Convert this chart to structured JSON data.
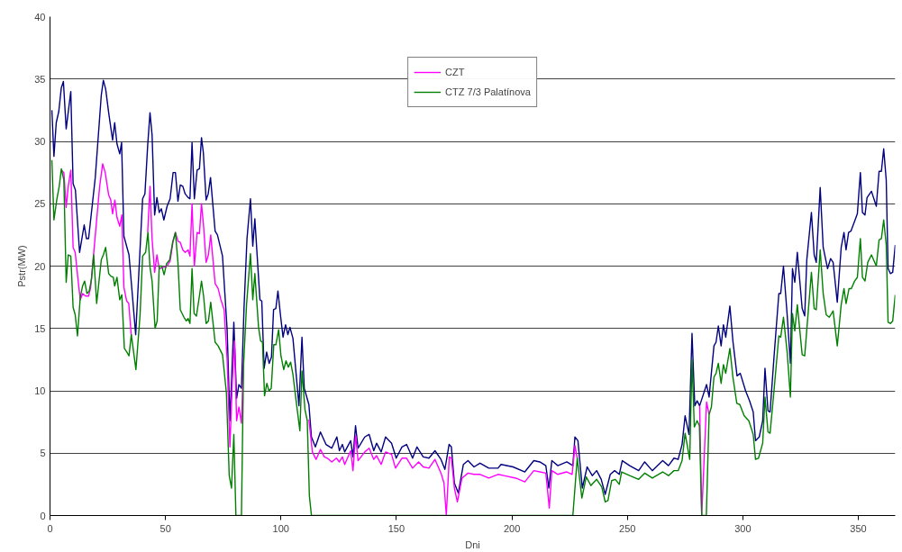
{
  "chart_data": {
    "type": "line",
    "xlabel": "Dni",
    "ylabel": "Pstr(MW)",
    "xlim": [
      0,
      366
    ],
    "ylim": [
      0,
      40
    ],
    "xticks": [
      0,
      50,
      100,
      150,
      200,
      250,
      300,
      350
    ],
    "yticks": [
      0,
      5,
      10,
      15,
      20,
      25,
      30,
      35,
      40
    ],
    "grid": "y",
    "legend": "top",
    "marker": "none",
    "line_style": "solid",
    "series": [
      {
        "color": "#000080",
        "x": [
          0.8,
          1.7,
          2.7,
          3.8,
          4.9,
          5.8,
          7,
          9,
          10,
          11,
          12.8,
          14.8,
          15.8,
          16.7,
          19.6,
          22.2,
          23.1,
          24.1,
          25.4,
          27.1,
          28,
          29,
          30.2,
          31,
          32,
          34.2,
          37.1,
          40.1,
          41.1,
          42.3,
          43.3,
          44.2,
          45.3,
          46.3,
          47.3,
          48.2,
          49.3,
          50.7,
          52,
          53.3,
          54.3,
          55.4,
          56.4,
          57.5,
          58.5,
          59.8,
          60.6,
          61.5,
          62.5,
          63.7,
          64.7,
          65.6,
          66.4,
          67.6,
          68.5,
          69.5,
          71.5,
          72.5,
          74.7,
          76.7,
          77.9,
          79.6,
          80.8,
          81.8,
          82.9,
          84,
          85.3,
          86.8,
          87.8,
          88.7,
          90.9,
          91.7,
          92.7,
          93.8,
          94.9,
          95.9,
          96.8,
          97.8,
          98.7,
          99.9,
          100.9,
          102,
          103,
          103.9,
          105.2,
          107.8,
          109.1,
          110.1,
          112.1,
          113.2,
          114.9,
          117.1,
          119.5,
          122,
          124.2,
          125.3,
          126.6,
          127.6,
          130.2,
          131.2,
          132.3,
          133.4,
          136.3,
          138.2,
          140.2,
          141.4,
          143.4,
          145.3,
          147.9,
          149.9,
          152.4,
          154.4,
          157,
          158.9,
          161.6,
          164.1,
          166.7,
          169.3,
          171,
          172.8,
          173.8,
          175.1,
          176.8,
          179,
          181,
          183.6,
          186.2,
          190,
          194,
          195.3,
          200.5,
          205.6,
          209.5,
          212.1,
          214.7,
          216,
          217.3,
          219.9,
          223.8,
          226.4,
          227.3,
          228.6,
          230.5,
          232.6,
          234.8,
          236.7,
          238.7,
          240.4,
          242.6,
          244.5,
          246.5,
          247.8,
          251,
          254.9,
          257.5,
          260.8,
          265.3,
          267.8,
          270.2,
          272,
          273.7,
          275,
          276.7,
          278,
          279.2,
          280.2,
          281.3,
          284.3,
          285.4,
          287.5,
          288.4,
          289.4,
          290.6,
          291.6,
          292.6,
          294.4,
          295.7,
          297.5,
          298.9,
          301.2,
          302.9,
          304.5,
          305.5,
          307.1,
          308.6,
          309.6,
          310.9,
          311.8,
          313.5,
          315.6,
          316.4,
          317.6,
          319.2,
          320.6,
          321.5,
          322.5,
          323.6,
          325.7,
          326.8,
          327.7,
          329.7,
          330.9,
          331.8,
          333.5,
          334.8,
          336.7,
          338,
          339.1,
          340.9,
          342.6,
          343.8,
          344.7,
          345.8,
          346.8,
          348.4,
          349.6,
          350.9,
          351.8,
          352.9,
          353.8,
          355.7,
          357.8,
          359,
          360,
          361,
          362.1,
          362.9,
          363.9,
          364.9,
          366
        ],
        "values": [
          32.5,
          28.8,
          31.5,
          32.4,
          34.3,
          34.8,
          31.0,
          34.0,
          26.6,
          26.1,
          21.1,
          23.3,
          22.2,
          22.2,
          27.1,
          33.7,
          34.9,
          34.2,
          32.3,
          30.1,
          31.5,
          29.8,
          29.0,
          29.9,
          22.4,
          20.9,
          14.5,
          25.4,
          25.8,
          29.7,
          32.3,
          30.5,
          24.1,
          25.5,
          24.3,
          24.6,
          23.7,
          24.8,
          25.4,
          27.5,
          27.5,
          25.2,
          26.5,
          26.4,
          25.8,
          25.5,
          25.4,
          29.9,
          25.4,
          27.7,
          27.8,
          30.3,
          29.1,
          25.3,
          25.8,
          27.1,
          22.8,
          22.5,
          20.8,
          14.9,
          7.6,
          15.5,
          9.4,
          10.5,
          10.2,
          16.6,
          22.2,
          25.4,
          21.6,
          23.8,
          17.3,
          17.2,
          11.8,
          13.1,
          12.2,
          12.7,
          16.5,
          16.6,
          18.0,
          15.9,
          14.3,
          15.3,
          14.5,
          15.1,
          14.2,
          8.8,
          14.3,
          10.2,
          8.9,
          6.3,
          5.5,
          6.7,
          5.7,
          5.4,
          6.3,
          5.2,
          5.7,
          5.1,
          6.0,
          4.7,
          7.2,
          5.4,
          6.3,
          6.5,
          5.2,
          5.8,
          5.1,
          6.3,
          5.8,
          4.6,
          5.5,
          5.7,
          4.6,
          5.5,
          4.7,
          4.6,
          5.2,
          4.5,
          3.7,
          5.7,
          5.5,
          2.6,
          1.8,
          4.1,
          4.4,
          3.9,
          4.2,
          3.8,
          3.8,
          4.1,
          3.9,
          3.5,
          4.4,
          4.3,
          4.0,
          2.2,
          4.4,
          4.0,
          4.3,
          4.0,
          6.3,
          6.0,
          2.2,
          3.9,
          3.2,
          3.6,
          2.9,
          1.7,
          3.3,
          3.6,
          3.3,
          4.4,
          4.0,
          3.6,
          4.3,
          3.6,
          4.4,
          4.0,
          4.6,
          4.5,
          5.7,
          8.0,
          6.5,
          14.6,
          8.8,
          9.2,
          8.8,
          10.5,
          9.5,
          13.6,
          13.9,
          15.2,
          13.6,
          15.3,
          14.3,
          16.8,
          14.0,
          11.2,
          11.4,
          10.0,
          9.2,
          8.3,
          6.0,
          6.3,
          7.6,
          11.8,
          8.4,
          8.3,
          12.7,
          17.8,
          17.8,
          20.0,
          16.1,
          12.2,
          19.8,
          18.7,
          21.1,
          16.6,
          16.0,
          20.5,
          24.3,
          20.9,
          20.3,
          26.3,
          21.5,
          19.8,
          20.6,
          20.3,
          17.1,
          21.5,
          22.7,
          21.3,
          22.7,
          22.8,
          23.6,
          24.2,
          27.5,
          24.3,
          24.1,
          25.5,
          26.0,
          24.8,
          27.6,
          27.6,
          29.4,
          26.9,
          19.8,
          19.4,
          19.5,
          21.7
        ]
      },
      {
        "name": "CZT",
        "color": "#ff00ff",
        "x": [
          4.9,
          6,
          7,
          7.9,
          9,
          10,
          10.9,
          11.9,
          13.1,
          14.1,
          15.4,
          16.7,
          17.6,
          18.9,
          20.2,
          21.5,
          22.8,
          23.9,
          25.4,
          26.3,
          27.1,
          28.1,
          29,
          30.2,
          31.1,
          32,
          33.2,
          34.1,
          35.2,
          39,
          42.3,
          43.3,
          44.2,
          45.3,
          46.3,
          47.3,
          49.2,
          50.7,
          52,
          53.3,
          54.3,
          55.4,
          56.4,
          57.5,
          58.5,
          59.8,
          60.6,
          61.5,
          62.5,
          63.7,
          64.7,
          65.6,
          66.5,
          67.6,
          68.6,
          69.6,
          71.5,
          72.8,
          74,
          75.4,
          76.7,
          77.9,
          78.9,
          79.9,
          80.8,
          81.8,
          82.9,
          83.8,
          98,
          112.1,
          113.6,
          115.2,
          117.1,
          118.8,
          120.1,
          122,
          124,
          125.3,
          126.6,
          127.6,
          130.2,
          131.2,
          132.3,
          133.4,
          136.3,
          138.2,
          140.2,
          141.4,
          143.4,
          145.3,
          147.9,
          149.6,
          152.4,
          154.4,
          157,
          159.6,
          161.6,
          164.1,
          166.7,
          169.3,
          170.6,
          171.6,
          172.9,
          173.8,
          175.1,
          176.4,
          178.4,
          181,
          183.6,
          186.2,
          190,
          194,
          196.5,
          201.7,
          205.6,
          209.5,
          212.1,
          214.7,
          216.2,
          217.3,
          219.9,
          223.8,
          226.1,
          227.3,
          228.3,
          250,
          281.3,
          282.2,
          284.3,
          285.4
        ],
        "values": [
          27.7,
          27.5,
          24.7,
          26.4,
          27.7,
          21.5,
          21.1,
          19.3,
          17.3,
          17.8,
          17.6,
          17.6,
          18.3,
          21.0,
          23.7,
          26.4,
          28.2,
          27.5,
          25.7,
          25.3,
          24.2,
          25.3,
          23.9,
          23.2,
          24.1,
          18.3,
          17.2,
          17.0,
          14.4,
          null,
          22.7,
          26.4,
          22.2,
          19.5,
          20.9,
          19.8,
          19.9,
          20.0,
          20.4,
          22.0,
          22.7,
          22.0,
          21.9,
          21.3,
          21.1,
          21.3,
          20.8,
          25.0,
          20.0,
          22.7,
          22.6,
          25.0,
          23.2,
          20.3,
          20.9,
          22.5,
          18.6,
          18.2,
          17.3,
          16.5,
          12.5,
          5.5,
          10.5,
          14.0,
          7.6,
          8.7,
          7.4,
          12.7,
          null,
          7.7,
          5.1,
          4.5,
          5.3,
          4.7,
          4.6,
          4.3,
          4.6,
          4.3,
          4.7,
          4.1,
          5.2,
          3.6,
          6.4,
          4.4,
          5.1,
          5.4,
          4.5,
          4.8,
          4.1,
          5.1,
          4.9,
          3.8,
          4.6,
          4.6,
          3.8,
          4.3,
          3.9,
          3.8,
          4.5,
          3.4,
          2.6,
          0,
          4.7,
          4.6,
          2.2,
          1.1,
          3.0,
          3.4,
          3.3,
          3.3,
          3.0,
          3.3,
          3.2,
          3.0,
          2.7,
          3.6,
          3.5,
          3.4,
          0.6,
          3.6,
          3.3,
          3.5,
          3.3,
          5.6,
          4.6,
          null,
          8.8,
          0,
          9.1,
          8.1
        ]
      },
      {
        "name": "CTZ 7/3 Palatínova",
        "color": "#008000",
        "x": [
          0.8,
          1.7,
          3,
          4,
          4.9,
          6,
          7,
          7.9,
          9,
          10,
          10.9,
          11.9,
          13.1,
          14.1,
          15,
          16,
          17,
          18,
          18.9,
          20.2,
          22.2,
          23.1,
          24.1,
          25.4,
          26.3,
          27.4,
          28,
          29,
          30.2,
          31.1,
          32.2,
          33.3,
          34.2,
          35.2,
          37.2,
          39,
          40.1,
          41.4,
          42.4,
          43.3,
          44.2,
          45.5,
          46.4,
          47.3,
          48.4,
          49.4,
          50.5,
          51.8,
          53.1,
          54.3,
          55.4,
          56.4,
          58,
          59,
          59.8,
          60.6,
          61.5,
          62.4,
          63.4,
          64.7,
          65.6,
          66.5,
          67.6,
          68.6,
          69.6,
          71.5,
          72.8,
          74.7,
          76.4,
          77.6,
          78.6,
          79.6,
          80.5,
          82.9,
          83.8,
          85.1,
          86.8,
          87.8,
          88.7,
          90.3,
          91.2,
          92,
          92.9,
          93.9,
          94.8,
          95.8,
          96.9,
          97.8,
          99,
          100,
          101.2,
          102.2,
          103.2,
          104.2,
          105.2,
          106.5,
          108.2,
          109.1,
          110.4,
          111.4,
          112.3,
          113.2,
          226.4,
          228.3,
          230.3,
          232.2,
          234.2,
          236.7,
          238.9,
          240.4,
          241.6,
          243.2,
          244.8,
          246.5,
          247.5,
          251,
          254.9,
          257.5,
          260.8,
          265.3,
          267.8,
          270.2,
          272,
          273.7,
          275,
          277,
          278,
          279,
          280.2,
          281.2,
          282.2,
          284.2,
          285.4,
          286.4,
          287.5,
          288.4,
          289.4,
          290.6,
          291.6,
          292.6,
          294.4,
          295.7,
          297.4,
          298.7,
          300.6,
          302.6,
          304.5,
          305.5,
          306.8,
          308.6,
          309.6,
          310.9,
          311.8,
          313.5,
          315.6,
          316.4,
          317.6,
          319.2,
          320.6,
          321.5,
          322.5,
          323.6,
          325.7,
          326.8,
          327.7,
          329.7,
          330.9,
          331.8,
          333.5,
          334.8,
          336.1,
          337.4,
          339.1,
          340.9,
          342.6,
          343.8,
          344.7,
          346,
          347,
          348.4,
          349.6,
          350.9,
          351.8,
          352.9,
          354.1,
          355.7,
          357.8,
          359,
          360,
          361,
          362.1,
          362.9,
          363.9,
          364.9,
          366
        ],
        "values": [
          28.5,
          23.7,
          25.4,
          26.4,
          27.8,
          26.9,
          18.7,
          20.9,
          20.8,
          16.7,
          16.1,
          14.4,
          17.5,
          18.4,
          18.8,
          17.8,
          18.0,
          19.0,
          20.9,
          17.0,
          20.5,
          20.9,
          21.5,
          19.4,
          19.2,
          19.1,
          18.4,
          19.1,
          17.3,
          17.7,
          13.4,
          13.1,
          12.8,
          14.5,
          11.7,
          16.1,
          20.8,
          21.1,
          22.7,
          19.9,
          18.8,
          15.0,
          15.6,
          20.0,
          20.0,
          19.3,
          20.2,
          20.5,
          21.9,
          22.7,
          20.3,
          16.5,
          15.9,
          15.6,
          15.8,
          15.4,
          19.8,
          16.2,
          16.0,
          17.6,
          18.8,
          17.6,
          15.4,
          15.6,
          17.1,
          13.9,
          13.6,
          12.9,
          9.8,
          3.2,
          2.2,
          6.5,
          0,
          0,
          12.0,
          16.9,
          21.0,
          17.3,
          19.4,
          15.1,
          14.0,
          13.9,
          9.6,
          10.6,
          10.0,
          10.2,
          13.7,
          13.7,
          14.9,
          12.8,
          11.7,
          12.4,
          11.9,
          12.3,
          11.3,
          9.3,
          6.8,
          11.6,
          8.5,
          7.6,
          1.6,
          0,
          0,
          4.6,
          1.4,
          3.1,
          2.4,
          2.9,
          2.3,
          1.1,
          1.2,
          2.8,
          2.9,
          2.5,
          3.5,
          3.2,
          2.9,
          3.4,
          3.0,
          3.5,
          3.2,
          3.6,
          3.6,
          4.4,
          6.6,
          4.5,
          12.5,
          7.1,
          7.6,
          7.2,
          0,
          0,
          8.1,
          8.7,
          11.1,
          11.4,
          12.2,
          10.6,
          12.1,
          11.4,
          13.4,
          11.1,
          9.0,
          8.9,
          8.0,
          7.6,
          6.5,
          4.5,
          4.6,
          5.8,
          9.5,
          6.7,
          6.6,
          10.0,
          14.4,
          14.3,
          15.9,
          13.1,
          9.5,
          16.2,
          14.8,
          16.9,
          12.9,
          12.8,
          14.9,
          19.5,
          16.6,
          16.5,
          21.3,
          17.8,
          16.1,
          15.9,
          16.4,
          13.6,
          16.9,
          18.2,
          17.0,
          18.2,
          18.2,
          18.8,
          19.1,
          22.2,
          19.1,
          18.8,
          20.3,
          20.9,
          20.0,
          22.1,
          22.2,
          23.7,
          21.7,
          15.5,
          15.4,
          15.6,
          17.7
        ]
      }
    ]
  }
}
